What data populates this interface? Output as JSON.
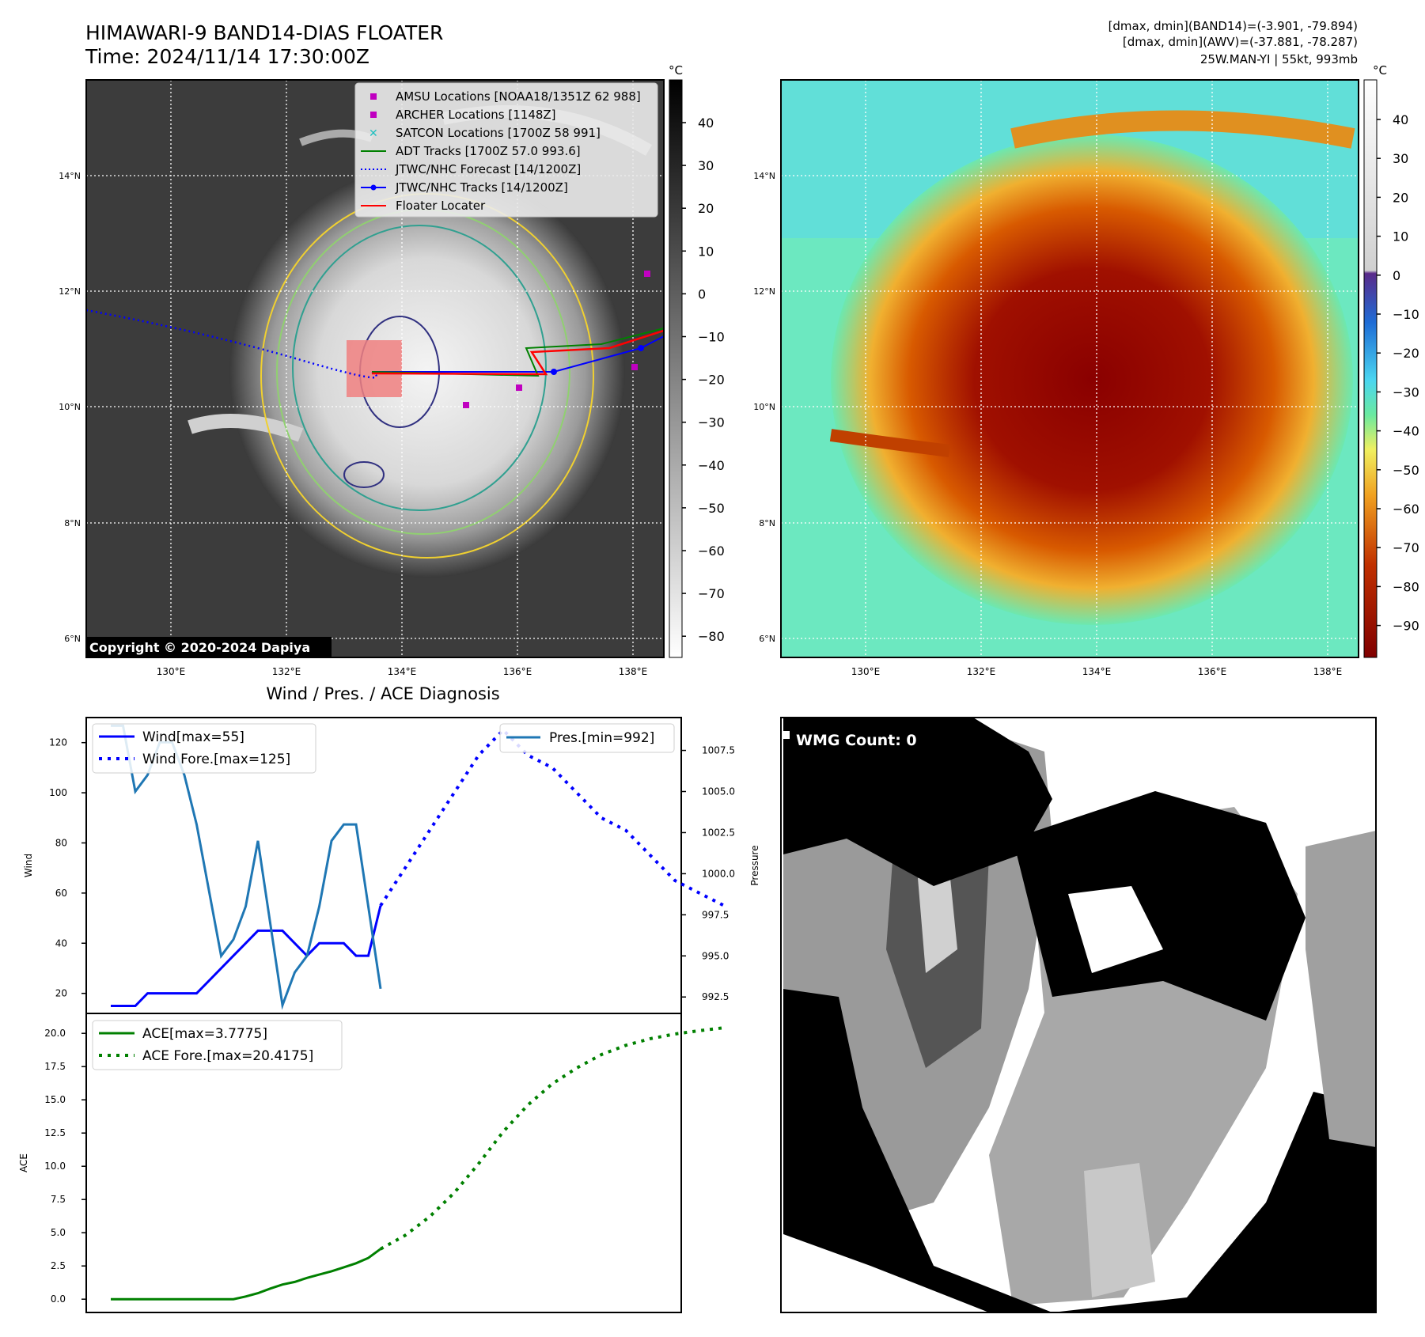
{
  "header": {
    "title_line1": "HIMAWARI-9 BAND14-DIAS FLOATER",
    "title_line2": "Time: 2024/11/14 17:30:00Z",
    "info_line1": "[dmax, dmin](BAND14)=(-3.901, -79.894)",
    "info_line2": "[dmax, dmin](AWV)=(-37.881, -78.287)",
    "info_line3": "25W.MAN-YI | 55kt, 993mb"
  },
  "map_axes": {
    "lon_ticks": [
      "130°E",
      "132°E",
      "134°E",
      "136°E",
      "138°E"
    ],
    "lat_ticks": [
      "14°N",
      "12°N",
      "10°N",
      "8°N",
      "6°N"
    ]
  },
  "ir_panel": {
    "copyright": "Copyright © 2020-2024 Dapiya",
    "colorbar_unit": "°C",
    "colorbar_ticks": [
      "40",
      "30",
      "20",
      "10",
      "0",
      "−10",
      "−20",
      "−30",
      "−40",
      "−50",
      "−60",
      "−70",
      "−80"
    ],
    "legend": [
      {
        "label": "AMSU Locations [NOAA18/1351Z 62 988]",
        "color": "#c000c0",
        "marker": "square"
      },
      {
        "label": "ARCHER Locations [1148Z]",
        "color": "#c000c0",
        "marker": "square"
      },
      {
        "label": "SATCON Locations [1700Z 58 991]",
        "color": "#20c0c0",
        "marker": "x"
      },
      {
        "label": "ADT Tracks [1700Z 57.0 993.6]",
        "color": "#008000",
        "marker": "line"
      },
      {
        "label": "JTWC/NHC Forecast [14/1200Z]",
        "color": "#0000ff",
        "marker": "dotted"
      },
      {
        "label": "JTWC/NHC Tracks [14/1200Z]",
        "color": "#0000ff",
        "marker": "line-dot"
      },
      {
        "label": "Floater Locater",
        "color": "#ff0000",
        "marker": "line"
      }
    ]
  },
  "awv_panel": {
    "colorbar_unit": "°C",
    "colorbar_ticks": [
      "40",
      "30",
      "20",
      "10",
      "0",
      "−10",
      "−20",
      "−30",
      "−40",
      "−50",
      "−60",
      "−70",
      "−80",
      "−90"
    ]
  },
  "wmg_panel": {
    "label": "WMG Count: 0"
  },
  "chart_data": [
    {
      "type": "line",
      "title": "Wind / Pres. / ACE Diagnosis",
      "ylabel": "Wind",
      "y2label": "Pressure",
      "ylim": [
        12,
        130
      ],
      "y2lim": [
        991.5,
        1009.5
      ],
      "yticks": [
        20,
        40,
        60,
        80,
        100,
        120
      ],
      "y2ticks": [
        "992.5",
        "995.0",
        "997.5",
        "1000.0",
        "1002.5",
        "1005.0",
        "1007.5"
      ],
      "series": [
        {
          "name": "Wind[max=55]",
          "color": "#0000ff",
          "style": "solid",
          "x": [
            0,
            2,
            3,
            4,
            5,
            6,
            7,
            8,
            9,
            10,
            11,
            12,
            13,
            14,
            15,
            16,
            17,
            18,
            19,
            20,
            21,
            22
          ],
          "values": [
            15,
            15,
            20,
            20,
            20,
            20,
            20,
            25,
            30,
            35,
            40,
            45,
            45,
            45,
            40,
            35,
            40,
            40,
            40,
            35,
            35,
            55
          ]
        },
        {
          "name": "Wind Fore.[max=125]",
          "color": "#0000ff",
          "style": "dotted",
          "x": [
            22,
            24,
            26,
            28,
            30,
            32,
            34,
            36,
            38,
            40,
            42,
            44,
            46,
            48,
            50
          ],
          "values": [
            55,
            70,
            85,
            100,
            115,
            125,
            115,
            110,
            100,
            90,
            85,
            75,
            65,
            60,
            55
          ]
        },
        {
          "name": "Pres.[min=992]",
          "color": "#1f77b4",
          "style": "solid",
          "x": [
            0,
            1,
            2,
            3,
            4,
            5,
            6,
            7,
            8,
            9,
            10,
            11,
            12,
            13,
            14,
            15,
            16,
            17,
            18,
            19,
            20,
            21,
            22
          ],
          "values": [
            1009,
            1009,
            1005,
            1006,
            1008,
            1008,
            1006,
            1003,
            999,
            995,
            996,
            998,
            1002,
            997,
            992,
            994,
            995,
            998,
            1002,
            1003,
            1003,
            998,
            993
          ]
        }
      ]
    },
    {
      "type": "line",
      "ylabel": "ACE",
      "ylim": [
        -1,
        21.5
      ],
      "yticks": [
        "0.0",
        "2.5",
        "5.0",
        "7.5",
        "10.0",
        "12.5",
        "15.0",
        "17.5",
        "20.0"
      ],
      "series": [
        {
          "name": "ACE[max=3.7775]",
          "color": "#008000",
          "style": "solid",
          "x": [
            0,
            2,
            4,
            6,
            8,
            10,
            11,
            12,
            13,
            14,
            15,
            16,
            17,
            18,
            19,
            20,
            21,
            22
          ],
          "values": [
            0,
            0,
            0,
            0,
            0,
            0,
            0.2,
            0.45,
            0.8,
            1.1,
            1.3,
            1.6,
            1.85,
            2.1,
            2.4,
            2.7,
            3.1,
            3.78
          ]
        },
        {
          "name": "ACE Fore.[max=20.4175]",
          "color": "#008000",
          "style": "dotted",
          "x": [
            22,
            24,
            26,
            28,
            30,
            32,
            34,
            36,
            38,
            40,
            42,
            44,
            46,
            48,
            50
          ],
          "values": [
            3.78,
            4.8,
            6.2,
            8.0,
            10.2,
            12.6,
            14.6,
            16.2,
            17.4,
            18.4,
            19.1,
            19.6,
            19.95,
            20.2,
            20.42
          ]
        }
      ]
    }
  ]
}
